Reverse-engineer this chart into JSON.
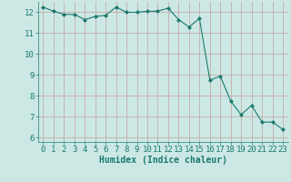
{
  "x": [
    0,
    1,
    2,
    3,
    4,
    5,
    6,
    7,
    8,
    9,
    10,
    11,
    12,
    13,
    14,
    15,
    16,
    17,
    18,
    19,
    20,
    21,
    22,
    23
  ],
  "y": [
    12.25,
    12.05,
    11.9,
    11.9,
    11.65,
    11.8,
    11.85,
    12.25,
    12.0,
    12.0,
    12.05,
    12.05,
    12.2,
    11.65,
    11.3,
    11.7,
    8.75,
    8.95,
    7.75,
    7.1,
    7.55,
    6.75,
    6.75,
    6.4
  ],
  "line_color": "#1a7a6e",
  "marker": "D",
  "marker_size": 2.0,
  "xlabel": "Humidex (Indice chaleur)",
  "xlabel_fontsize": 7,
  "bg_color": "#cce8e4",
  "grid_color_v": "#c4a0a0",
  "grid_color_h": "#c4a0a0",
  "tick_color": "#1a7a6e",
  "ylim": [
    5.8,
    12.5
  ],
  "xlim": [
    -0.5,
    23.5
  ],
  "yticks": [
    6,
    7,
    8,
    9,
    10,
    11,
    12
  ],
  "xticks": [
    0,
    1,
    2,
    3,
    4,
    5,
    6,
    7,
    8,
    9,
    10,
    11,
    12,
    13,
    14,
    15,
    16,
    17,
    18,
    19,
    20,
    21,
    22,
    23
  ],
  "tick_fontsize": 6.5
}
